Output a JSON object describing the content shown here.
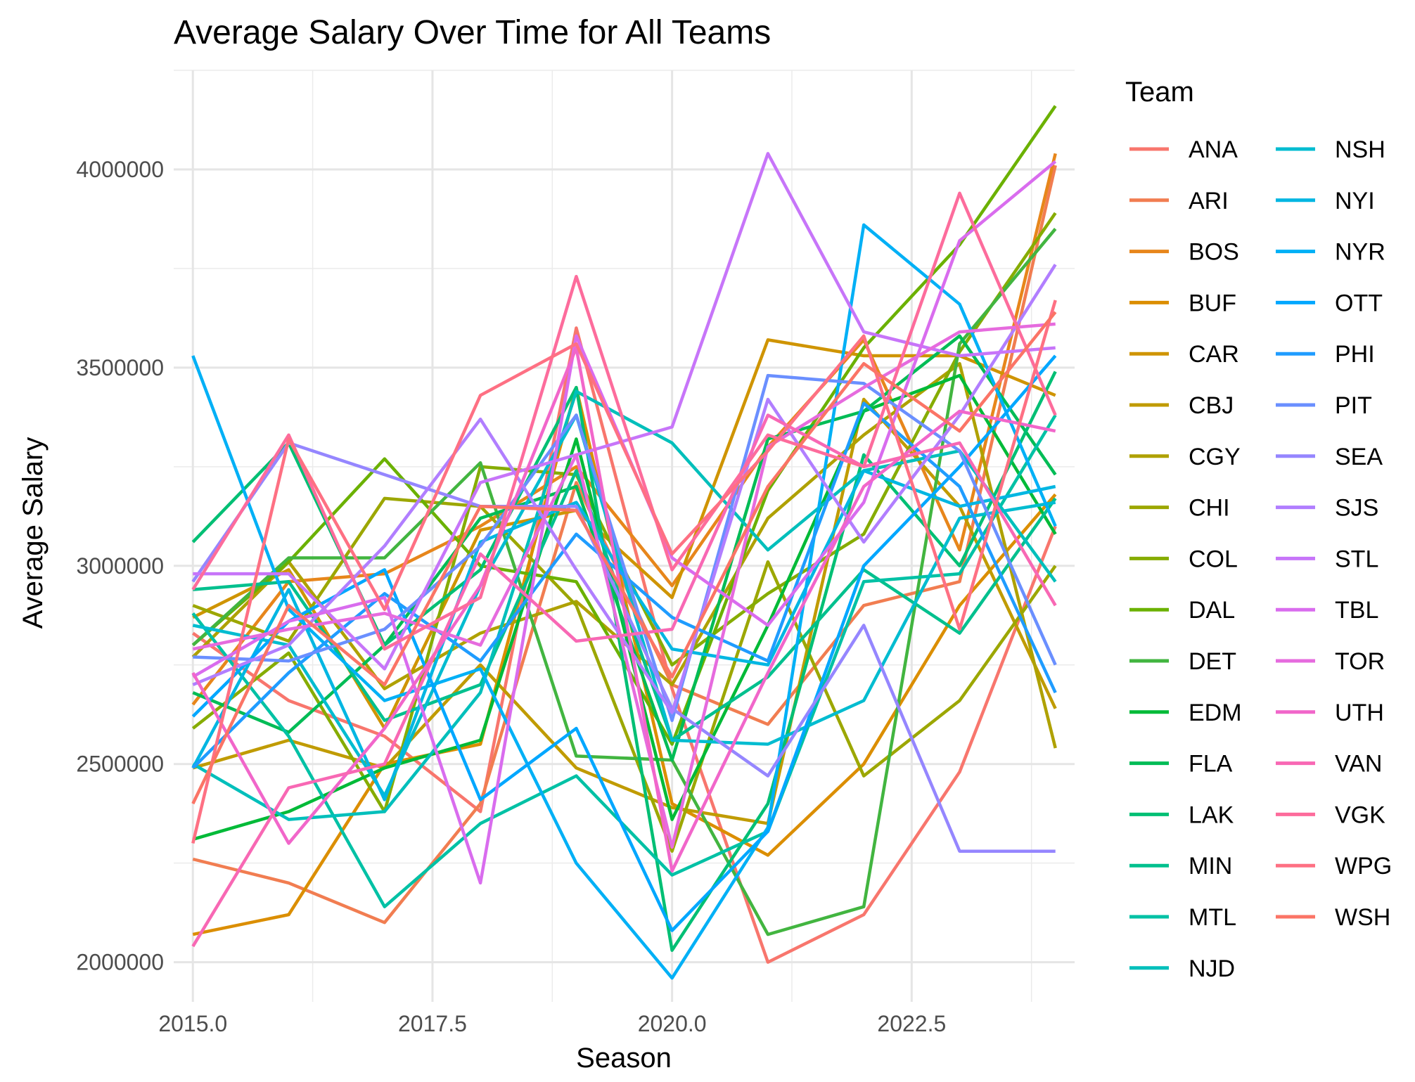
{
  "chart_data": {
    "type": "line",
    "title": "Average Salary Over Time for All Teams",
    "xlabel": "Season",
    "ylabel": "Average Salary",
    "legend_title": "Team",
    "legend_position": "right",
    "grid": true,
    "xlim": [
      2014.8,
      2024.2
    ],
    "ylim": [
      1900000,
      4250000
    ],
    "x_ticks": [
      2015.0,
      2017.5,
      2020.0,
      2022.5
    ],
    "x_tick_labels": [
      "2015.0",
      "2017.5",
      "2020.0",
      "2022.5"
    ],
    "y_ticks": [
      2000000,
      2500000,
      3000000,
      3500000,
      4000000
    ],
    "y_tick_labels": [
      "2000000",
      "2500000",
      "3000000",
      "3500000",
      "4000000"
    ],
    "x": [
      2015,
      2016,
      2017,
      2018,
      2019,
      2020,
      2021,
      2022,
      2023,
      2024
    ],
    "series": [
      {
        "name": "ANA",
        "color": "#F8766D",
        "values": [
          2830000,
          2660000,
          2570000,
          2380000,
          3600000,
          2690000,
          2000000,
          2120000,
          2480000,
          3100000
        ]
      },
      {
        "name": "ARI",
        "color": "#F17D51",
        "values": [
          2260000,
          2200000,
          2100000,
          2400000,
          3210000,
          2700000,
          2600000,
          2900000,
          2960000,
          4010000
        ]
      },
      {
        "name": "BOS",
        "color": "#E7861B",
        "values": [
          2650000,
          2960000,
          2980000,
          3100000,
          3250000,
          2950000,
          3300000,
          3570000,
          3040000,
          4040000
        ]
      },
      {
        "name": "BUF",
        "color": "#DB8E00",
        "values": [
          2070000,
          2120000,
          2500000,
          2550000,
          3450000,
          2400000,
          2270000,
          2500000,
          2900000,
          3180000
        ]
      },
      {
        "name": "CAR",
        "color": "#CF9400",
        "values": [
          2870000,
          2990000,
          2590000,
          3090000,
          3140000,
          2920000,
          3570000,
          3530000,
          3530000,
          3430000
        ]
      },
      {
        "name": "CBJ",
        "color": "#C09B00",
        "values": [
          2490000,
          2560000,
          2490000,
          2750000,
          2490000,
          2390000,
          2350000,
          3420000,
          3150000,
          2640000
        ]
      },
      {
        "name": "CGY",
        "color": "#AFA100",
        "values": [
          2770000,
          3010000,
          2690000,
          2830000,
          2910000,
          2700000,
          3120000,
          3330000,
          3510000,
          2540000
        ]
      },
      {
        "name": "CHI",
        "color": "#9CA700",
        "values": [
          2900000,
          2810000,
          3170000,
          3150000,
          2900000,
          2280000,
          3010000,
          2470000,
          2660000,
          3000000
        ]
      },
      {
        "name": "COL",
        "color": "#86AC00",
        "values": [
          2590000,
          2780000,
          2380000,
          3250000,
          3230000,
          2750000,
          2930000,
          3080000,
          3540000,
          3890000
        ]
      },
      {
        "name": "DAL",
        "color": "#6BB100",
        "values": [
          2800000,
          3010000,
          3270000,
          3000000,
          2960000,
          2550000,
          3190000,
          3550000,
          3810000,
          4160000
        ]
      },
      {
        "name": "DET",
        "color": "#42B540",
        "values": [
          2800000,
          3020000,
          3020000,
          3260000,
          2520000,
          2510000,
          2070000,
          2140000,
          3560000,
          3850000
        ]
      },
      {
        "name": "EDM",
        "color": "#00BA38",
        "values": [
          2310000,
          2380000,
          2490000,
          2560000,
          3320000,
          2360000,
          2850000,
          3390000,
          3480000,
          3080000
        ]
      },
      {
        "name": "FLA",
        "color": "#00BC56",
        "values": [
          2680000,
          2580000,
          2800000,
          3120000,
          3200000,
          2510000,
          3320000,
          3390000,
          3580000,
          3230000
        ]
      },
      {
        "name": "LAK",
        "color": "#00BF74",
        "values": [
          3060000,
          3310000,
          2800000,
          2990000,
          3450000,
          2030000,
          2400000,
          3280000,
          3000000,
          3490000
        ]
      },
      {
        "name": "MIN",
        "color": "#00C08E",
        "values": [
          2940000,
          2960000,
          2610000,
          2700000,
          3240000,
          2560000,
          2720000,
          2990000,
          2830000,
          3170000
        ]
      },
      {
        "name": "MTL",
        "color": "#00C1A5",
        "values": [
          2880000,
          2570000,
          2140000,
          2350000,
          2470000,
          2220000,
          2330000,
          2960000,
          2980000,
          3380000
        ]
      },
      {
        "name": "NJD",
        "color": "#00BFBB",
        "values": [
          2500000,
          2360000,
          2380000,
          2680000,
          3440000,
          3310000,
          3040000,
          3240000,
          3290000,
          2960000
        ]
      },
      {
        "name": "NSH",
        "color": "#00BCD0",
        "values": [
          2850000,
          2800000,
          2420000,
          2950000,
          3380000,
          2560000,
          2550000,
          2660000,
          3120000,
          3160000
        ]
      },
      {
        "name": "NYI",
        "color": "#00B6E2",
        "values": [
          2490000,
          2940000,
          2410000,
          3060000,
          3160000,
          2790000,
          2750000,
          3240000,
          3150000,
          3200000
        ]
      },
      {
        "name": "NYR",
        "color": "#00B0F6",
        "values": [
          3530000,
          2890000,
          2660000,
          2740000,
          2250000,
          1960000,
          2340000,
          3860000,
          3660000,
          3100000
        ]
      },
      {
        "name": "OTT",
        "color": "#00A7FF",
        "values": [
          2620000,
          2860000,
          2990000,
          2410000,
          2590000,
          2080000,
          2330000,
          3000000,
          3250000,
          3530000
        ]
      },
      {
        "name": "PHI",
        "color": "#1F9CFF",
        "values": [
          2490000,
          2730000,
          2930000,
          2760000,
          3080000,
          2870000,
          2760000,
          3410000,
          3200000,
          2680000
        ]
      },
      {
        "name": "PIT",
        "color": "#6A8FFF",
        "values": [
          2770000,
          2760000,
          2840000,
          3050000,
          3380000,
          2610000,
          3480000,
          3460000,
          3290000,
          2750000
        ]
      },
      {
        "name": "SEA",
        "color": "#9586FF",
        "values": [
          2960000,
          3310000,
          3230000,
          3150000,
          3150000,
          2640000,
          2470000,
          2850000,
          2280000,
          2280000
        ]
      },
      {
        "name": "SJS",
        "color": "#B17EFF",
        "values": [
          2700000,
          2800000,
          3050000,
          3370000,
          2990000,
          2630000,
          3420000,
          3060000,
          3380000,
          3760000
        ]
      },
      {
        "name": "STL",
        "color": "#C775F9",
        "values": [
          2980000,
          2980000,
          2740000,
          3210000,
          3280000,
          3350000,
          4040000,
          3590000,
          3530000,
          3550000
        ]
      },
      {
        "name": "TBL",
        "color": "#D96CEE",
        "values": [
          2720000,
          2860000,
          2920000,
          2200000,
          3580000,
          3020000,
          2850000,
          3160000,
          3820000,
          4020000
        ]
      },
      {
        "name": "TOR",
        "color": "#E66BDE",
        "values": [
          2790000,
          2840000,
          2880000,
          2800000,
          3280000,
          2290000,
          3300000,
          3450000,
          3590000,
          3610000
        ]
      },
      {
        "name": "UTH",
        "color": "#F166CA",
        "values": [
          2730000,
          2300000,
          2590000,
          2950000,
          3550000,
          2230000,
          2730000,
          3200000,
          3390000,
          3340000
        ]
      },
      {
        "name": "VAN",
        "color": "#F868B4",
        "values": [
          2040000,
          2440000,
          2500000,
          3030000,
          2810000,
          2840000,
          3380000,
          3250000,
          3310000,
          2900000
        ]
      },
      {
        "name": "VGK",
        "color": "#FD6C9C",
        "values": [
          2940000,
          3330000,
          2790000,
          2920000,
          3730000,
          2990000,
          3330000,
          3250000,
          3940000,
          3380000
        ]
      },
      {
        "name": "WPG",
        "color": "#FE7083",
        "values": [
          2300000,
          3320000,
          2890000,
          3430000,
          3560000,
          3030000,
          3290000,
          3580000,
          2840000,
          3670000
        ]
      },
      {
        "name": "WSH",
        "color": "#FB7466",
        "values": [
          2400000,
          2900000,
          2700000,
          3150000,
          3140000,
          2720000,
          3200000,
          3510000,
          3340000,
          3640000
        ]
      }
    ]
  }
}
